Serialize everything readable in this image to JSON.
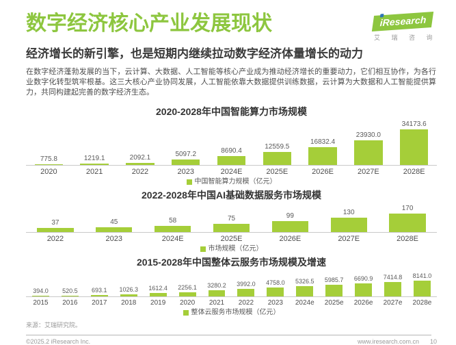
{
  "header": {
    "title": "数字经济核心产业发展现状",
    "subtitle": "经济增长的新引擎，也是短期内继续拉动数字经济体量增长的动力",
    "logo": {
      "brand": "iResearch",
      "caption": "艾 瑞 咨 询",
      "badge_color": "#8dc63f",
      "dot_color": "#2e75b6"
    }
  },
  "intro": "在数字经济蓬勃发展的当下，云计算、大数据、人工智能等核心产业成为推动经济增长的重要动力，它们相互协作，为各行业数字化转型筑牢根基。这三大核心产业协同发展，人工智能依靠大数据提供训练数据，云计算为大数据和人工智能提供算力，共同构建起完善的数字经济生态。",
  "accent_color": "#8dc63f",
  "bar_color": "#a5ce39",
  "chart_data": [
    {
      "type": "bar",
      "title": "2020-2028年中国智能算力市场规模",
      "categories": [
        "2020",
        "2021",
        "2022",
        "2023",
        "2024E",
        "2025E",
        "2026E",
        "2027E",
        "2028E"
      ],
      "values": [
        775.8,
        1219.1,
        2092.1,
        5097.2,
        8690.4,
        12559.5,
        16832.4,
        23930.0,
        34173.6
      ],
      "labels": [
        "775.8",
        "1219.1",
        "2092.1",
        "5097.2",
        "8690.4",
        "12559.5",
        "16832.4",
        "23930.0",
        "34173.6"
      ],
      "legend": "中国智能算力规模（亿元）",
      "bar_color": "#a5ce39",
      "ylim": [
        0,
        36000
      ],
      "grid": false,
      "legend_position": "bottom-center"
    },
    {
      "type": "bar",
      "title": "2022-2028年中国AI基础数据服务市场规模",
      "categories": [
        "2022",
        "2023",
        "2024E",
        "2025E",
        "2026E",
        "2027E",
        "2028E"
      ],
      "values": [
        37,
        45,
        58,
        75,
        99,
        130,
        170
      ],
      "labels": [
        "37",
        "45",
        "58",
        "75",
        "99",
        "130",
        "170"
      ],
      "legend": "市场规模（亿元）",
      "bar_color": "#a5ce39",
      "ylim": [
        0,
        180
      ],
      "grid": false,
      "legend_position": "bottom-center"
    },
    {
      "type": "bar",
      "title": "2015-2028年中国整体云服务市场规模及增速",
      "categories": [
        "2015",
        "2016",
        "2017",
        "2018",
        "2019",
        "2020",
        "2021",
        "2022",
        "2023",
        "2024e",
        "2025e",
        "2026e",
        "2027e",
        "2028e"
      ],
      "values": [
        394.0,
        520.5,
        693.1,
        1026.3,
        1612.4,
        2256.1,
        3280.2,
        3992.0,
        4758.0,
        5326.5,
        5985.7,
        6690.9,
        7414.8,
        8141.0
      ],
      "labels": [
        "394.0",
        "520.5",
        "693.1",
        "1026.3",
        "1612.4",
        "2256.1",
        "3280.2",
        "3992.0",
        "4758.0",
        "5326.5",
        "5985.7",
        "6690.9",
        "7414.8",
        "8141.0"
      ],
      "legend": "整体云服务市场规模（亿元）",
      "bar_color": "#a5ce39",
      "ylim": [
        0,
        8500
      ],
      "grid": false,
      "legend_position": "bottom-center"
    }
  ],
  "footer": {
    "source": "来源：艾瑞研究院。",
    "copyright": "©2025.2 iResearch Inc.",
    "website": "www.iresearch.com.cn",
    "page": "10"
  }
}
